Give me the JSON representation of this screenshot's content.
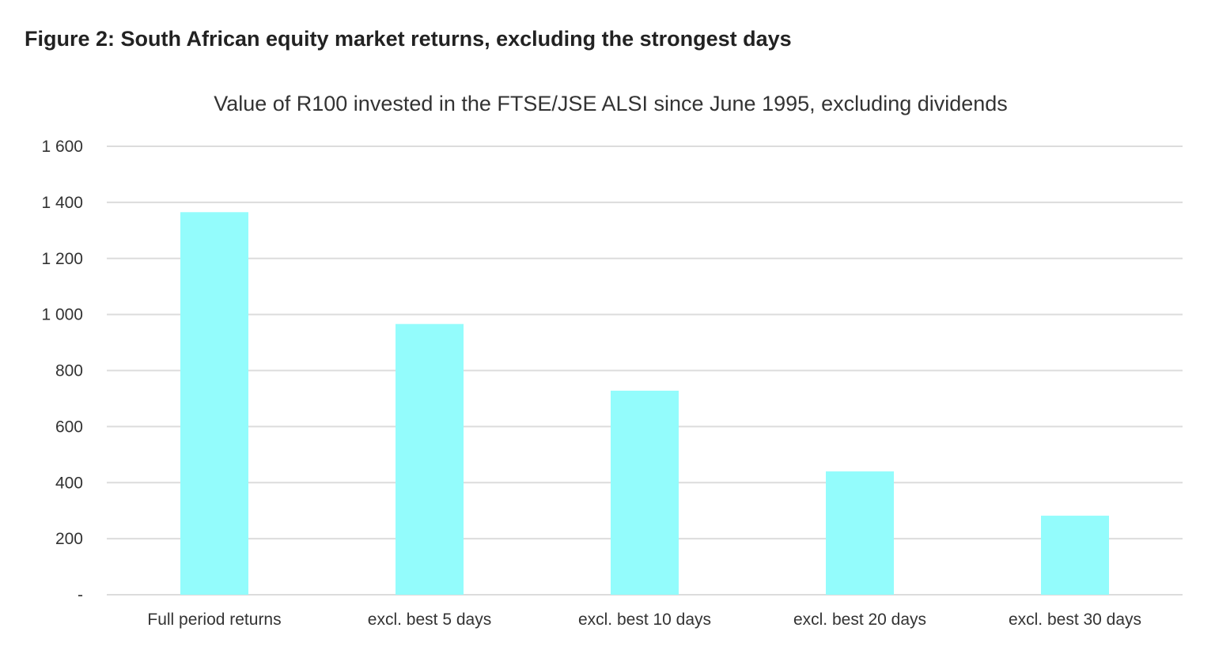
{
  "figure_title": "Figure 2: South African equity market returns, excluding the strongest days",
  "chart_data": {
    "type": "bar",
    "title": "Value of R100 invested in the FTSE/JSE ALSI since June 1995, excluding dividends",
    "categories": [
      "Full period returns",
      "excl. best 5 days",
      "excl. best 10 days",
      "excl. best 20 days",
      "excl. best 30 days"
    ],
    "values": [
      1365,
      966,
      728,
      440,
      282
    ],
    "xlabel": "",
    "ylabel": "",
    "ylim": [
      0,
      1600
    ],
    "yticks": [
      0,
      200,
      400,
      600,
      800,
      1000,
      1200,
      1400,
      1600
    ],
    "ytick_labels": [
      "-",
      "200",
      "400",
      "600",
      "800",
      "1 000",
      "1 200",
      "1 400",
      "1 600"
    ],
    "grid": true,
    "bar_color": "#93FCFC"
  }
}
